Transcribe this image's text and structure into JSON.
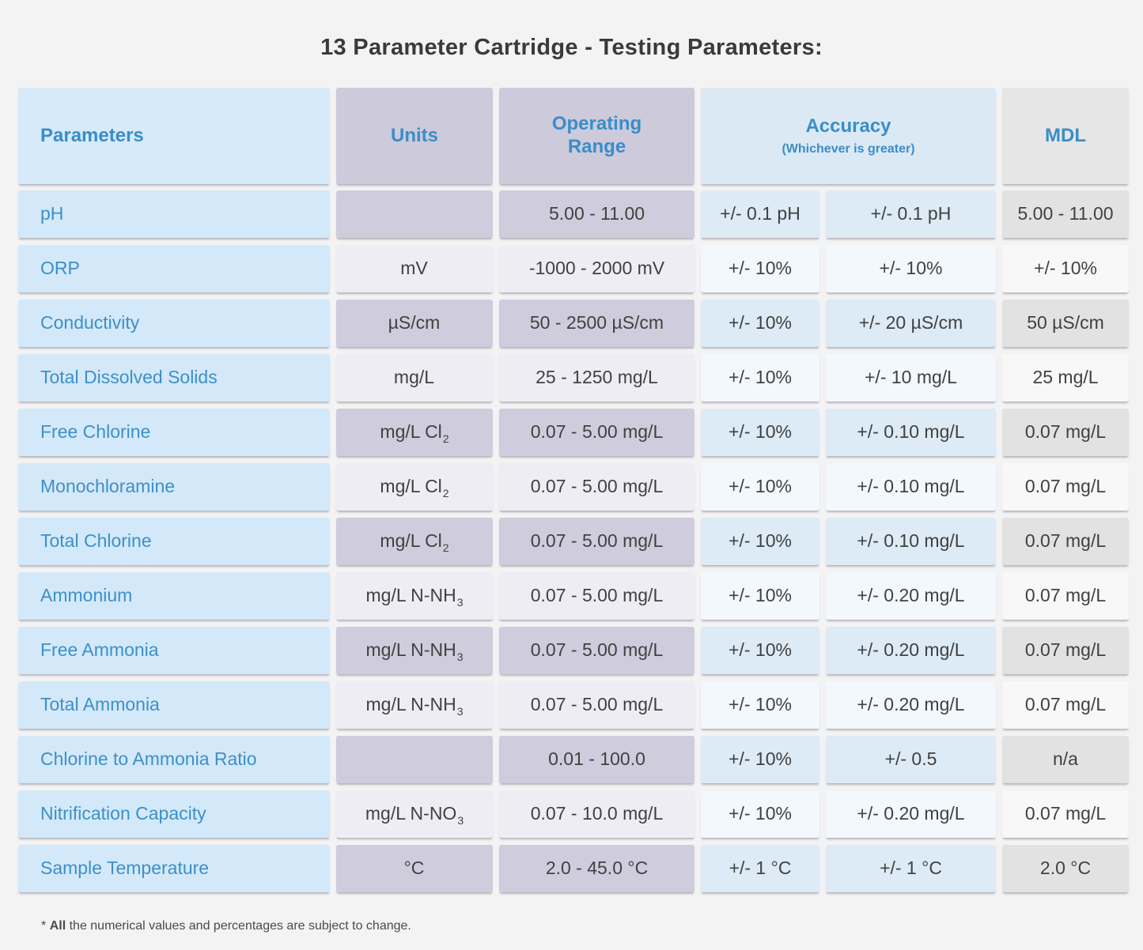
{
  "title": "13 Parameter Cartridge - Testing Parameters:",
  "colors": {
    "page_background": "#f3f3f4",
    "header_text_blue": "#3a8dc8",
    "parameter_text_blue": "#3e8fc9",
    "value_text": "#414141",
    "light_blue_cell": "#d3e9f9",
    "lavender_cell_dark": "#cfccdd",
    "lavender_cell_light": "#efedf4",
    "accuracy_cell_dark": "#dcebf5",
    "accuracy_cell_light": "#f3f8fc",
    "mdl_cell_dark": "#e2e2e2",
    "mdl_cell_light": "#f8f8f8"
  },
  "table": {
    "headers": {
      "parameters": "Parameters",
      "units": "Units",
      "operating_range": "Operating Range",
      "accuracy": "Accuracy",
      "accuracy_note": "(Whichever is greater)",
      "mdl": "MDL"
    },
    "rows": [
      {
        "parameter": "pH",
        "unit": "",
        "unit_sub": "",
        "range": "5.00 - 11.00",
        "accuracy_pct": "+/- 0.1 pH",
        "accuracy_abs": "+/- 0.1 pH",
        "mdl": "5.00 - 11.00"
      },
      {
        "parameter": "ORP",
        "unit": "mV",
        "unit_sub": "",
        "range": "-1000 - 2000 mV",
        "accuracy_pct": "+/- 10%",
        "accuracy_abs": "+/- 10%",
        "mdl": "+/- 10%"
      },
      {
        "parameter": "Conductivity",
        "unit": "µS/cm",
        "unit_sub": "",
        "range": "50 - 2500 µS/cm",
        "accuracy_pct": "+/- 10%",
        "accuracy_abs": "+/- 20 µS/cm",
        "mdl": "50 µS/cm"
      },
      {
        "parameter": "Total Dissolved Solids",
        "unit": "mg/L",
        "unit_sub": "",
        "range": "25 - 1250 mg/L",
        "accuracy_pct": "+/- 10%",
        "accuracy_abs": "+/- 10 mg/L",
        "mdl": "25 mg/L"
      },
      {
        "parameter": "Free Chlorine",
        "unit": "mg/L Cl",
        "unit_sub": "2",
        "range": "0.07 - 5.00 mg/L",
        "accuracy_pct": "+/- 10%",
        "accuracy_abs": "+/- 0.10 mg/L",
        "mdl": "0.07 mg/L"
      },
      {
        "parameter": "Monochloramine",
        "unit": "mg/L Cl",
        "unit_sub": "2",
        "range": "0.07 - 5.00 mg/L",
        "accuracy_pct": "+/- 10%",
        "accuracy_abs": "+/- 0.10 mg/L",
        "mdl": "0.07 mg/L"
      },
      {
        "parameter": "Total Chlorine",
        "unit": "mg/L Cl",
        "unit_sub": "2",
        "range": "0.07 - 5.00 mg/L",
        "accuracy_pct": "+/- 10%",
        "accuracy_abs": "+/- 0.10 mg/L",
        "mdl": "0.07 mg/L"
      },
      {
        "parameter": "Ammonium",
        "unit": "mg/L N-NH",
        "unit_sub": "3",
        "range": "0.07 - 5.00 mg/L",
        "accuracy_pct": "+/- 10%",
        "accuracy_abs": "+/- 0.20 mg/L",
        "mdl": "0.07 mg/L"
      },
      {
        "parameter": "Free Ammonia",
        "unit": "mg/L N-NH",
        "unit_sub": "3",
        "range": "0.07 - 5.00 mg/L",
        "accuracy_pct": "+/- 10%",
        "accuracy_abs": "+/- 0.20 mg/L",
        "mdl": "0.07 mg/L"
      },
      {
        "parameter": "Total Ammonia",
        "unit": "mg/L N-NH",
        "unit_sub": "3",
        "range": "0.07 - 5.00 mg/L",
        "accuracy_pct": "+/- 10%",
        "accuracy_abs": "+/- 0.20 mg/L",
        "mdl": "0.07 mg/L"
      },
      {
        "parameter": "Chlorine to Ammonia Ratio",
        "unit": "",
        "unit_sub": "",
        "range": "0.01 - 100.0",
        "accuracy_pct": "+/- 10%",
        "accuracy_abs": "+/- 0.5",
        "mdl": "n/a"
      },
      {
        "parameter": "Nitrification Capacity",
        "unit": "mg/L N-NO",
        "unit_sub": "3",
        "range": "0.07 - 10.0 mg/L",
        "accuracy_pct": "+/- 10%",
        "accuracy_abs": "+/- 0.20 mg/L",
        "mdl": "0.07 mg/L"
      },
      {
        "parameter": "Sample Temperature",
        "unit": "°C",
        "unit_sub": "",
        "range": "2.0 - 45.0 °C",
        "accuracy_pct": "+/- 1 °C",
        "accuracy_abs": "+/- 1 °C",
        "mdl": "2.0 °C"
      }
    ]
  },
  "footnote": {
    "marker": "*",
    "bold": "All",
    "text": "the numerical values and percentages are subject to change."
  }
}
